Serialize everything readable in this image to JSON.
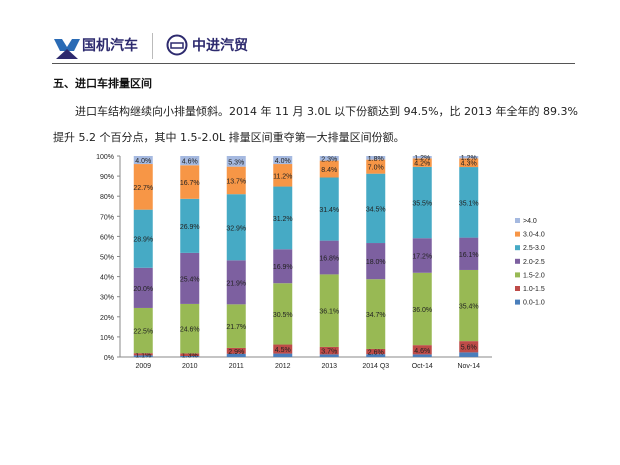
{
  "header": {
    "brand1": "国机汽车",
    "brand2": "中进汽贸"
  },
  "section_title": "五、进口车排量区间",
  "paragraph": "进口车结构继续向小排量倾斜。2014 年 11 月 3.0L 以下份额达到 94.5%，比 2013 年全年的 89.3%提升 5.2 个百分点，其中 1.5-2.0L 排量区间重夺第一大排量区间份额。",
  "chart_data": {
    "type": "bar",
    "stacked": true,
    "categories": [
      "2009",
      "2010",
      "2011",
      "2012",
      "2013",
      "2014 Q3",
      "Oct-14",
      "Nov-14"
    ],
    "yticks": [
      "0%",
      "10%",
      "20%",
      "30%",
      "40%",
      "50%",
      "60%",
      "70%",
      "80%",
      "90%",
      "100%"
    ],
    "ylim": [
      0,
      100
    ],
    "legend_position": "right",
    "series": [
      {
        "name": "0.0-1.0",
        "color": "#4a7ebb",
        "values": [
          0.8,
          0.5,
          1.6,
          1.7,
          1.3,
          1.4,
          1.3,
          2.3
        ],
        "labeled": false
      },
      {
        "name": "1.0-1.5",
        "color": "#be4b48",
        "values": [
          1.1,
          1.3,
          2.9,
          4.5,
          3.7,
          2.6,
          4.6,
          5.6
        ],
        "labeled": true
      },
      {
        "name": "1.5-2.0",
        "color": "#98b954",
        "values": [
          22.5,
          24.6,
          21.7,
          30.5,
          36.1,
          34.7,
          36.0,
          35.4
        ],
        "labeled": true
      },
      {
        "name": "2.0-2.5",
        "color": "#7d60a0",
        "values": [
          20.0,
          25.4,
          21.9,
          16.9,
          16.8,
          18.0,
          17.2,
          16.1
        ],
        "labeled": true
      },
      {
        "name": "2.5-3.0",
        "color": "#46aac5",
        "values": [
          28.9,
          26.9,
          32.9,
          31.2,
          31.4,
          34.5,
          35.5,
          35.1
        ],
        "labeled": true
      },
      {
        "name": "3.0-4.0",
        "color": "#f79646",
        "values": [
          22.7,
          16.7,
          13.7,
          11.2,
          8.4,
          7.0,
          4.2,
          4.3
        ],
        "labeled": true
      },
      {
        "name": ">4.0",
        "color": "#a5b9e0",
        "values": [
          4.0,
          4.6,
          5.3,
          4.0,
          2.3,
          1.8,
          1.2,
          1.2
        ],
        "labeled": true
      }
    ]
  }
}
